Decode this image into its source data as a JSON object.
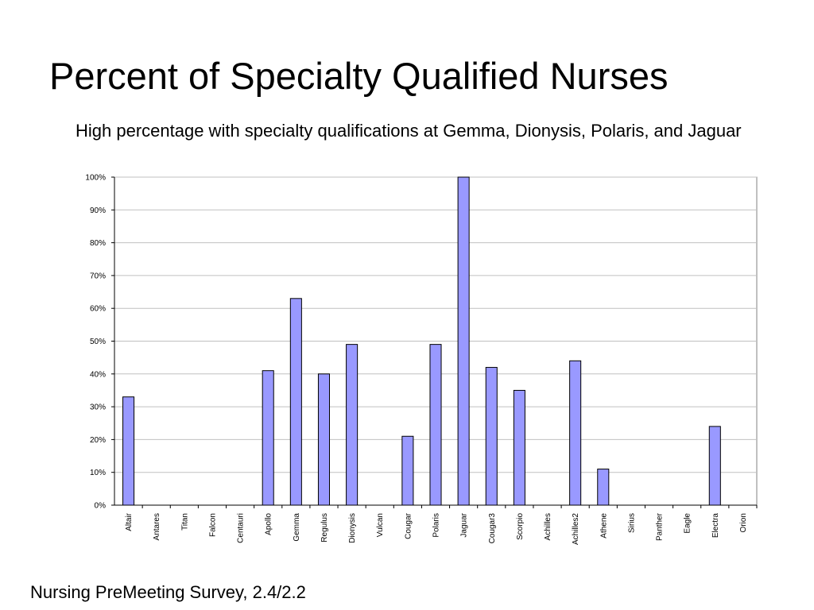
{
  "slide": {
    "title": "Percent of Specialty Qualified Nurses",
    "subtitle": "High percentage with specialty qualifications at Gemma, Dionysis, Polaris, and Jaguar",
    "footer": "Nursing PreMeeting Survey, 2.4/2.2"
  },
  "colors": {
    "bar_fill": "#9999ff",
    "bar_stroke": "#000000",
    "grid": "#c0c0c0",
    "axis": "#000000"
  },
  "chart_data": {
    "type": "bar",
    "title": "",
    "xlabel": "",
    "ylabel": "",
    "ylim": [
      0,
      100
    ],
    "yticks": [
      0,
      10,
      20,
      30,
      40,
      50,
      60,
      70,
      80,
      90,
      100
    ],
    "ytick_labels": [
      "0%",
      "10%",
      "20%",
      "30%",
      "40%",
      "50%",
      "60%",
      "70%",
      "80%",
      "90%",
      "100%"
    ],
    "grid": true,
    "legend": "none",
    "categories": [
      "Altair",
      "Antares",
      "Titan",
      "Falcon",
      "Centauri",
      "Apollo",
      "Gemma",
      "Regulus",
      "Dionysis",
      "Vulcan",
      "Cougar",
      "Polaris",
      "Jaguar",
      "Cougar3",
      "Scorpio",
      "Achilles",
      "Achilles2",
      "Athene",
      "Sirius",
      "Panther",
      "Eagle",
      "Electra",
      "Orion"
    ],
    "values": [
      33,
      0,
      0,
      0,
      0,
      41,
      63,
      40,
      49,
      0,
      21,
      49,
      100,
      42,
      35,
      0,
      44,
      11,
      0,
      0,
      0,
      24,
      0
    ]
  }
}
